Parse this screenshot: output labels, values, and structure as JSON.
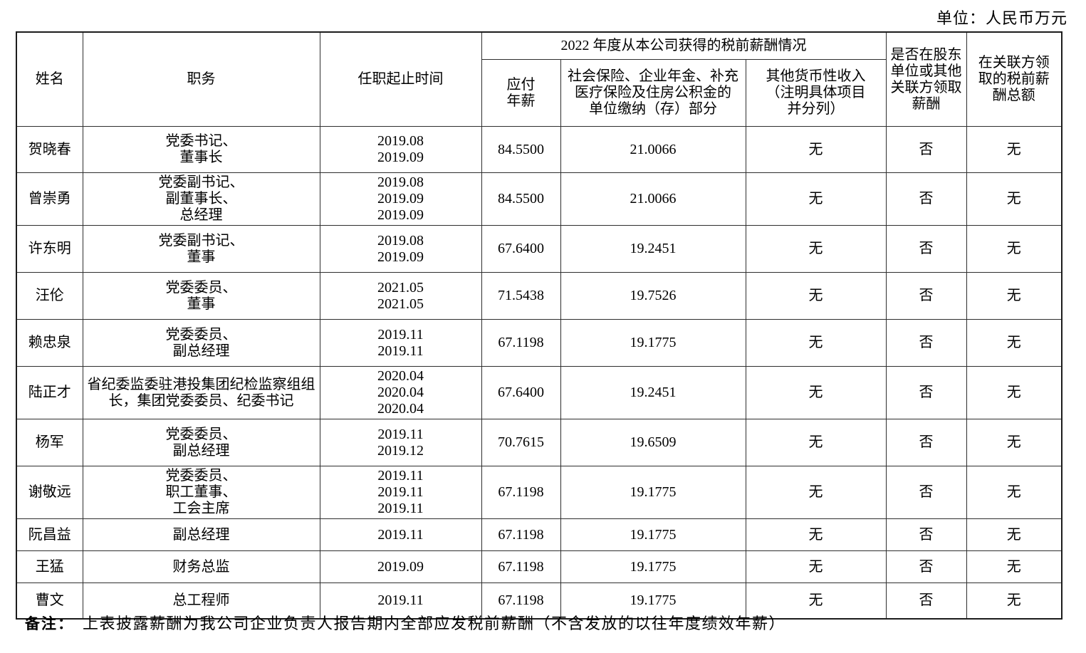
{
  "page": {
    "unit_label": "单位：人民币万元",
    "note_label": "备注：",
    "note_text": "上表披露薪酬为我公司企业负责人报告期内全部应发税前薪酬（不含发放的以往年度绩效年薪）"
  },
  "table": {
    "header": {
      "name": "姓名",
      "position": "职务",
      "term": "任职起止时间",
      "salary_group": "2022 年度从本公司获得的税前薪酬情况",
      "salary_payable": "应付\n年薪",
      "social_insurance": "社会保险、企业年金、补充\n医疗保险及住房公积金的\n单位缴纳（存）部分",
      "other_income": "其他货币性收入\n（注明具体项目\n并分列）",
      "related_party_paid": "是否在股东\n单位或其他\n关联方领取\n薪酬",
      "related_party_total": "在关联方领\n取的税前薪\n酬总额"
    },
    "col_keys": [
      "name",
      "position",
      "term",
      "salary-payable",
      "social-insurance",
      "other-income",
      "related-party-paid",
      "related-party-total"
    ],
    "rows": [
      [
        "贺晓春",
        "党委书记、\n董事长",
        "2019.08\n2019.09",
        "84.5500",
        "21.0066",
        "无",
        "否",
        "无"
      ],
      [
        "曾崇勇",
        "党委副书记、\n副董事长、\n总经理",
        "2019.08\n2019.09\n2019.09",
        "84.5500",
        "21.0066",
        "无",
        "否",
        "无"
      ],
      [
        "许东明",
        "党委副书记、\n董事",
        "2019.08\n2019.09",
        "67.6400",
        "19.2451",
        "无",
        "否",
        "无"
      ],
      [
        "汪伦",
        "党委委员、\n董事",
        "2021.05\n2021.05",
        "71.5438",
        "19.7526",
        "无",
        "否",
        "无"
      ],
      [
        "赖忠泉",
        "党委委员、\n副总经理",
        "2019.11\n2019.11",
        "67.1198",
        "19.1775",
        "无",
        "否",
        "无"
      ],
      [
        "陆正才",
        "省纪委监委驻港投集团纪检监察组组\n长，集团党委委员、纪委书记",
        "2020.04\n2020.04\n2020.04",
        "67.6400",
        "19.2451",
        "无",
        "否",
        "无"
      ],
      [
        "杨军",
        "党委委员、\n副总经理",
        "2019.11\n2019.12",
        "70.7615",
        "19.6509",
        "无",
        "否",
        "无"
      ],
      [
        "谢敬远",
        "党委委员、\n职工董事、\n工会主席",
        "2019.11\n2019.11\n2019.11",
        "67.1198",
        "19.1775",
        "无",
        "否",
        "无"
      ],
      [
        "阮昌益",
        "副总经理",
        "2019.11",
        "67.1198",
        "19.1775",
        "无",
        "否",
        "无"
      ],
      [
        "王猛",
        "财务总监",
        "2019.09",
        "67.1198",
        "19.1775",
        "无",
        "否",
        "无"
      ],
      [
        "曹文",
        "总工程师",
        "2019.11",
        "67.1198",
        "19.1775",
        "无",
        "否",
        "无"
      ]
    ]
  }
}
